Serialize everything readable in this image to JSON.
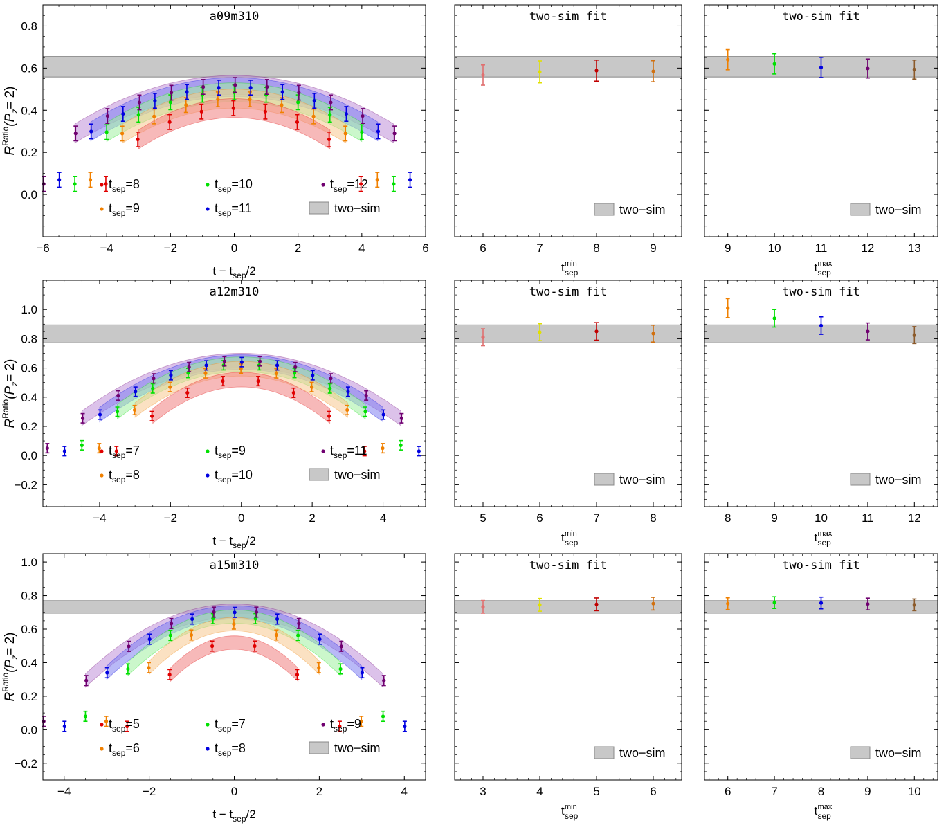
{
  "figure": {
    "rows": [
      {
        "ensemble": "a09m310",
        "two_sim_band": [
          0.558,
          0.655
        ],
        "tsep": [
          8,
          9,
          10,
          11,
          12
        ],
        "ratio": {
          "title": "a09m310",
          "type": "scatter",
          "xlabel_main": "t − t",
          "xlabel_sub": "sep",
          "xlabel_tail": "/2",
          "ylabel_main": "R",
          "ylabel_sup": "Ratio",
          "ylabel_args": "(P",
          "ylabel_sub": "z",
          "ylabel_tail": "= 2)",
          "xlim": [
            -6,
            6
          ],
          "ylim": [
            -0.2,
            0.9
          ],
          "xticks": [
            -6,
            -4,
            -2,
            0,
            2,
            4,
            6
          ],
          "yticks": [
            0.0,
            0.2,
            0.4,
            0.6,
            0.8
          ],
          "ytick_labels": [
            "0.0",
            "0.2",
            "0.4",
            "0.6",
            "0.8"
          ],
          "xtick_labels": [
            "−6",
            "−4",
            "−2",
            "0",
            "2",
            "4",
            "6"
          ]
        },
        "tmin_panel": {
          "title": "two-sim fit",
          "xlabel_main": "t",
          "xlabel_sup": "min",
          "xlabel_sub": "sep",
          "xlim": [
            5.5,
            9.5
          ],
          "xticks": [
            6,
            7,
            8,
            9
          ],
          "points": [
            {
              "x": 6,
              "y": 0.567,
              "err": 0.048,
              "color": "#e07070"
            },
            {
              "x": 7,
              "y": 0.582,
              "err": 0.052,
              "color": "#e0e000"
            },
            {
              "x": 8,
              "y": 0.588,
              "err": 0.05,
              "color": "#c00000"
            },
            {
              "x": 9,
              "y": 0.585,
              "err": 0.05,
              "color": "#d07010"
            }
          ]
        },
        "tmax_panel": {
          "title": "two-sim fit",
          "xlabel_main": "t",
          "xlabel_sup": "max",
          "xlabel_sub": "sep",
          "xlim": [
            8.5,
            13.5
          ],
          "xticks": [
            9,
            10,
            11,
            12,
            13
          ],
          "points": [
            {
              "x": 9,
              "y": 0.64,
              "err": 0.048,
              "color": "#f08000"
            },
            {
              "x": 10,
              "y": 0.62,
              "err": 0.048,
              "color": "#00e000"
            },
            {
              "x": 11,
              "y": 0.603,
              "err": 0.048,
              "color": "#0000e0"
            },
            {
              "x": 12,
              "y": 0.598,
              "err": 0.045,
              "color": "#700070"
            },
            {
              "x": 13,
              "y": 0.593,
              "err": 0.045,
              "color": "#8b5a2b"
            }
          ]
        }
      },
      {
        "ensemble": "a12m310",
        "two_sim_band": [
          0.772,
          0.895
        ],
        "tsep": [
          7,
          8,
          9,
          10,
          11
        ],
        "ratio": {
          "title": "a12m310",
          "type": "scatter",
          "xlabel_main": "t − t",
          "xlabel_sub": "sep",
          "xlabel_tail": "/2",
          "ylabel_main": "R",
          "ylabel_sup": "Ratio",
          "ylabel_args": "(P",
          "ylabel_sub": "z",
          "ylabel_tail": "= 2)",
          "xlim": [
            -5.6,
            5.2
          ],
          "ylim": [
            -0.35,
            1.2
          ],
          "xticks": [
            -4,
            -2,
            0,
            2,
            4
          ],
          "yticks": [
            -0.2,
            0.0,
            0.2,
            0.4,
            0.6,
            0.8,
            1.0
          ],
          "ytick_labels": [
            "−0.2",
            "0.0",
            "0.2",
            "0.4",
            "0.6",
            "0.8",
            "1.0"
          ],
          "xtick_labels": [
            "−4",
            "−2",
            "0",
            "2",
            "4"
          ]
        },
        "tmin_panel": {
          "title": "two-sim fit",
          "xlabel_main": "t",
          "xlabel_sup": "min",
          "xlabel_sub": "sep",
          "xlim": [
            4.5,
            8.5
          ],
          "xticks": [
            5,
            6,
            7,
            8
          ],
          "points": [
            {
              "x": 5,
              "y": 0.81,
              "err": 0.058,
              "color": "#e07070"
            },
            {
              "x": 6,
              "y": 0.845,
              "err": 0.058,
              "color": "#e0e000"
            },
            {
              "x": 7,
              "y": 0.85,
              "err": 0.06,
              "color": "#c00000"
            },
            {
              "x": 8,
              "y": 0.835,
              "err": 0.058,
              "color": "#d07010"
            }
          ]
        },
        "tmax_panel": {
          "title": "two-sim fit",
          "xlabel_main": "t",
          "xlabel_sup": "max",
          "xlabel_sub": "sep",
          "xlim": [
            7.5,
            12.5
          ],
          "xticks": [
            8,
            9,
            10,
            11,
            12
          ],
          "points": [
            {
              "x": 8,
              "y": 1.01,
              "err": 0.065,
              "color": "#f08000"
            },
            {
              "x": 9,
              "y": 0.94,
              "err": 0.06,
              "color": "#00e000"
            },
            {
              "x": 10,
              "y": 0.89,
              "err": 0.06,
              "color": "#0000e0"
            },
            {
              "x": 11,
              "y": 0.85,
              "err": 0.058,
              "color": "#700070"
            },
            {
              "x": 12,
              "y": 0.825,
              "err": 0.058,
              "color": "#8b5a2b"
            }
          ]
        }
      },
      {
        "ensemble": "a15m310",
        "two_sim_band": [
          0.695,
          0.77
        ],
        "tsep": [
          5,
          6,
          7,
          8,
          9
        ],
        "ratio": {
          "title": "a15m310",
          "type": "scatter",
          "xlabel_main": "t − t",
          "xlabel_sub": "sep",
          "xlabel_tail": "/2",
          "ylabel_main": "R",
          "ylabel_sup": "Ratio",
          "ylabel_args": "(P",
          "ylabel_sub": "z",
          "ylabel_tail": "= 2)",
          "xlim": [
            -4.5,
            4.5
          ],
          "ylim": [
            -0.3,
            1.05
          ],
          "xticks": [
            -4,
            -2,
            0,
            2,
            4
          ],
          "yticks": [
            -0.2,
            0.0,
            0.2,
            0.4,
            0.6,
            0.8,
            1.0
          ],
          "ytick_labels": [
            "−0.2",
            "0.0",
            "0.2",
            "0.4",
            "0.6",
            "0.8",
            "1.0"
          ],
          "xtick_labels": [
            "−4",
            "−2",
            "0",
            "2",
            "4"
          ]
        },
        "tmin_panel": {
          "title": "two-sim fit",
          "xlabel_main": "t",
          "xlabel_sup": "min",
          "xlabel_sub": "sep",
          "xlim": [
            2.5,
            6.5
          ],
          "xticks": [
            3,
            4,
            5,
            6
          ],
          "points": [
            {
              "x": 3,
              "y": 0.733,
              "err": 0.038,
              "color": "#e07070"
            },
            {
              "x": 4,
              "y": 0.745,
              "err": 0.038,
              "color": "#e0e000"
            },
            {
              "x": 5,
              "y": 0.748,
              "err": 0.038,
              "color": "#c00000"
            },
            {
              "x": 6,
              "y": 0.752,
              "err": 0.038,
              "color": "#d07010"
            }
          ]
        },
        "tmax_panel": {
          "title": "two-sim fit",
          "xlabel_main": "t",
          "xlabel_sup": "max",
          "xlabel_sub": "sep",
          "xlim": [
            5.5,
            10.5
          ],
          "xticks": [
            6,
            7,
            8,
            9,
            10
          ],
          "points": [
            {
              "x": 6,
              "y": 0.752,
              "err": 0.035,
              "color": "#f08000"
            },
            {
              "x": 7,
              "y": 0.758,
              "err": 0.035,
              "color": "#00e000"
            },
            {
              "x": 8,
              "y": 0.756,
              "err": 0.035,
              "color": "#0000e0"
            },
            {
              "x": 9,
              "y": 0.75,
              "err": 0.035,
              "color": "#700070"
            },
            {
              "x": 10,
              "y": 0.745,
              "err": 0.035,
              "color": "#8b5a2b"
            }
          ]
        }
      }
    ],
    "legend": {
      "tsep_prefix": "t",
      "tsep_sub": "sep",
      "two_sim_label": "two−sim"
    },
    "series_colors": [
      "#e00000",
      "#f08000",
      "#00e000",
      "#0000e0",
      "#700070"
    ]
  },
  "chart_data": [
    {
      "type": "scatter",
      "title": "a09m310",
      "xlabel": "t − t_sep/2",
      "ylabel": "R^Ratio(P_z= 2)",
      "xlim": [
        -6,
        6
      ],
      "ylim": [
        -0.2,
        0.9
      ],
      "series_names": [
        "t_sep=8",
        "t_sep=9",
        "t_sep=10",
        "t_sep=11",
        "t_sep=12",
        "two−sim"
      ],
      "two_sim_band": [
        0.558,
        0.655
      ],
      "peak_values": [
        0.41,
        0.455,
        0.485,
        0.51,
        0.52
      ]
    },
    {
      "type": "scatter",
      "title": "two-sim fit",
      "xlabel": "t_sep^min",
      "x": [
        6,
        7,
        8,
        9
      ],
      "y": [
        0.567,
        0.582,
        0.588,
        0.585
      ]
    },
    {
      "type": "scatter",
      "title": "two-sim fit",
      "xlabel": "t_sep^max",
      "x": [
        9,
        10,
        11,
        12,
        13
      ],
      "y": [
        0.64,
        0.62,
        0.603,
        0.598,
        0.593
      ]
    },
    {
      "type": "scatter",
      "title": "a12m310",
      "xlabel": "t − t_sep/2",
      "ylabel": "R^Ratio(P_z= 2)",
      "series_names": [
        "t_sep=7",
        "t_sep=8",
        "t_sep=9",
        "t_sep=10",
        "t_sep=11",
        "two−sim"
      ],
      "two_sim_band": [
        0.772,
        0.895
      ],
      "peak_values": [
        0.52,
        0.595,
        0.625,
        0.64,
        0.65
      ]
    },
    {
      "type": "scatter",
      "title": "two-sim fit",
      "xlabel": "t_sep^min",
      "x": [
        5,
        6,
        7,
        8
      ],
      "y": [
        0.81,
        0.845,
        0.85,
        0.835
      ]
    },
    {
      "type": "scatter",
      "title": "two-sim fit",
      "xlabel": "t_sep^max",
      "x": [
        8,
        9,
        10,
        11,
        12
      ],
      "y": [
        1.01,
        0.94,
        0.89,
        0.85,
        0.825
      ]
    },
    {
      "type": "scatter",
      "title": "a15m310",
      "xlabel": "t − t_sep/2",
      "ylabel": "R^Ratio(P_z= 2)",
      "series_names": [
        "t_sep=5",
        "t_sep=6",
        "t_sep=7",
        "t_sep=8",
        "t_sep=9",
        "two−sim"
      ],
      "two_sim_band": [
        0.695,
        0.77
      ],
      "peak_values": [
        0.52,
        0.63,
        0.675,
        0.7,
        0.71
      ]
    },
    {
      "type": "scatter",
      "title": "two-sim fit",
      "xlabel": "t_sep^min",
      "x": [
        3,
        4,
        5,
        6
      ],
      "y": [
        0.733,
        0.745,
        0.748,
        0.752
      ]
    },
    {
      "type": "scatter",
      "title": "two-sim fit",
      "xlabel": "t_sep^max",
      "x": [
        6,
        7,
        8,
        9,
        10
      ],
      "y": [
        0.752,
        0.758,
        0.756,
        0.75,
        0.745
      ]
    }
  ]
}
